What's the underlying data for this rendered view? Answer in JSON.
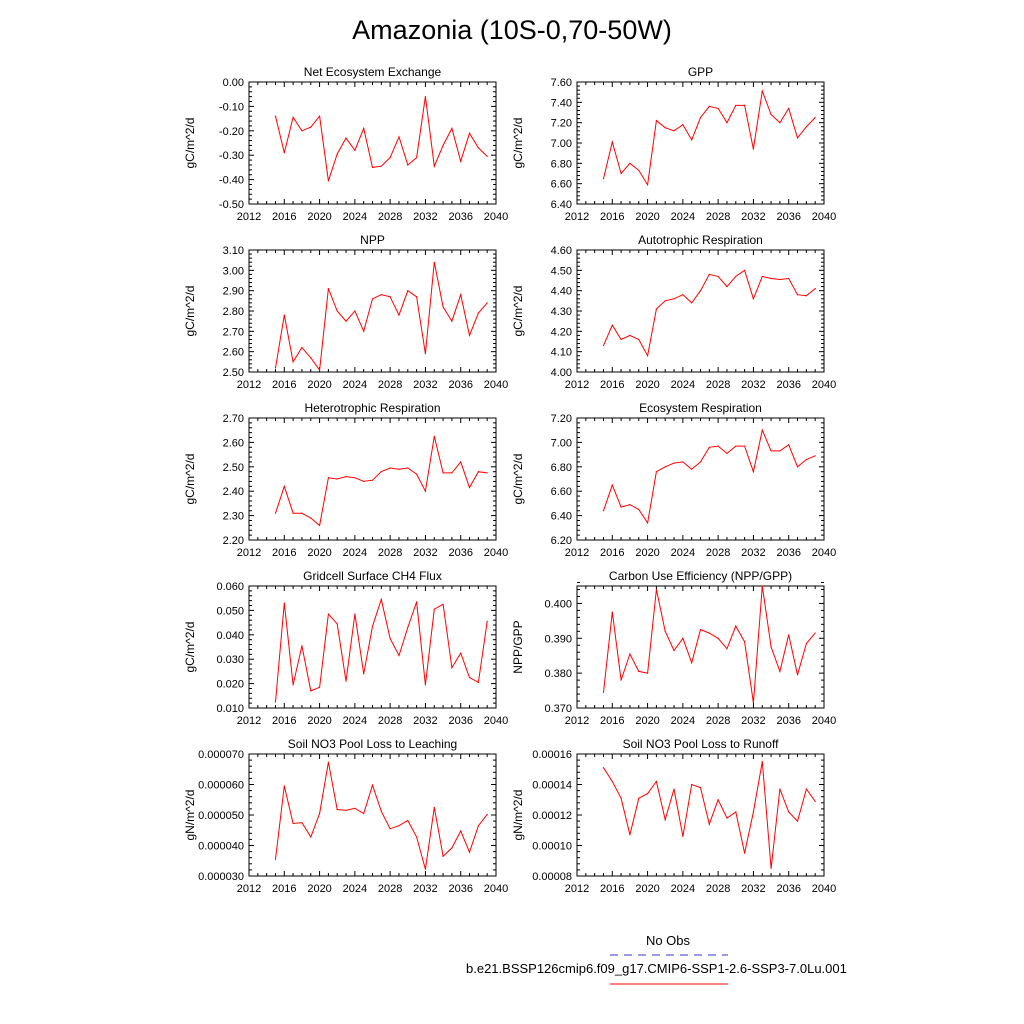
{
  "page": {
    "title": "Amazonia (10S-0,70-50W)"
  },
  "legend": {
    "obs_label": "No Obs",
    "obs_color": "#3333cc",
    "model_label": "b.e21.BSSP126cmip6.f09_g17.CMIP6-SSP1-2.6-SSP3-7.0Lu.001",
    "model_color": "#ff0000"
  },
  "chart_data": [
    {
      "type": "line",
      "title": "Net Ecosystem Exchange",
      "ylabel": "gC/m^2/d",
      "xlim": [
        2012,
        2040
      ],
      "xticks": [
        2012,
        2016,
        2020,
        2024,
        2028,
        2032,
        2036,
        2040
      ],
      "ylim": [
        -0.5,
        0.0
      ],
      "yticks": [
        -0.5,
        -0.4,
        -0.3,
        -0.2,
        -0.1,
        0.0
      ],
      "ydecimals": 2,
      "series": [
        {
          "color": "#ff0000",
          "x": [
            2015,
            2016,
            2017,
            2018,
            2019,
            2020,
            2021,
            2022,
            2023,
            2024,
            2025,
            2026,
            2027,
            2028,
            2029,
            2030,
            2031,
            2032,
            2033,
            2034,
            2035,
            2036,
            2037,
            2038,
            2039
          ],
          "y": [
            -0.14,
            -0.29,
            -0.145,
            -0.2,
            -0.185,
            -0.14,
            -0.405,
            -0.295,
            -0.23,
            -0.28,
            -0.19,
            -0.35,
            -0.345,
            -0.31,
            -0.225,
            -0.34,
            -0.31,
            -0.06,
            -0.345,
            -0.26,
            -0.19,
            -0.325,
            -0.21,
            -0.27,
            -0.305
          ]
        }
      ]
    },
    {
      "type": "line",
      "title": "GPP",
      "ylabel": "gC/m^2/d",
      "xlim": [
        2012,
        2040
      ],
      "xticks": [
        2012,
        2016,
        2020,
        2024,
        2028,
        2032,
        2036,
        2040
      ],
      "ylim": [
        6.4,
        7.6
      ],
      "yticks": [
        6.4,
        6.6,
        6.8,
        7.0,
        7.2,
        7.4,
        7.6
      ],
      "ydecimals": 2,
      "series": [
        {
          "color": "#ff0000",
          "x": [
            2015,
            2016,
            2017,
            2018,
            2019,
            2020,
            2021,
            2022,
            2023,
            2024,
            2025,
            2026,
            2027,
            2028,
            2029,
            2030,
            2031,
            2032,
            2033,
            2034,
            2035,
            2036,
            2037,
            2038,
            2039
          ],
          "y": [
            6.65,
            7.01,
            6.7,
            6.8,
            6.73,
            6.59,
            7.22,
            7.15,
            7.12,
            7.18,
            7.03,
            7.25,
            7.36,
            7.34,
            7.2,
            7.37,
            7.37,
            6.94,
            7.51,
            7.28,
            7.2,
            7.34,
            7.05,
            7.16,
            7.25
          ]
        }
      ]
    },
    {
      "type": "line",
      "title": "NPP",
      "ylabel": "gC/m^2/d",
      "xlim": [
        2012,
        2040
      ],
      "xticks": [
        2012,
        2016,
        2020,
        2024,
        2028,
        2032,
        2036,
        2040
      ],
      "ylim": [
        2.5,
        3.1
      ],
      "yticks": [
        2.5,
        2.6,
        2.7,
        2.8,
        2.9,
        3.0,
        3.1
      ],
      "ydecimals": 2,
      "series": [
        {
          "color": "#ff0000",
          "x": [
            2015,
            2016,
            2017,
            2018,
            2019,
            2020,
            2021,
            2022,
            2023,
            2024,
            2025,
            2026,
            2027,
            2028,
            2029,
            2030,
            2031,
            2032,
            2033,
            2034,
            2035,
            2036,
            2037,
            2038,
            2039
          ],
          "y": [
            2.52,
            2.78,
            2.55,
            2.62,
            2.57,
            2.51,
            2.91,
            2.8,
            2.75,
            2.8,
            2.7,
            2.86,
            2.88,
            2.87,
            2.78,
            2.9,
            2.87,
            2.59,
            3.04,
            2.82,
            2.75,
            2.88,
            2.68,
            2.79,
            2.84
          ]
        }
      ]
    },
    {
      "type": "line",
      "title": "Autotrophic Respiration",
      "ylabel": "gC/m^2/d",
      "xlim": [
        2012,
        2040
      ],
      "xticks": [
        2012,
        2016,
        2020,
        2024,
        2028,
        2032,
        2036,
        2040
      ],
      "ylim": [
        4.0,
        4.6
      ],
      "yticks": [
        4.0,
        4.1,
        4.2,
        4.3,
        4.4,
        4.5,
        4.6
      ],
      "ydecimals": 2,
      "series": [
        {
          "color": "#ff0000",
          "x": [
            2015,
            2016,
            2017,
            2018,
            2019,
            2020,
            2021,
            2022,
            2023,
            2024,
            2025,
            2026,
            2027,
            2028,
            2029,
            2030,
            2031,
            2032,
            2033,
            2034,
            2035,
            2036,
            2037,
            2038,
            2039
          ],
          "y": [
            4.13,
            4.23,
            4.16,
            4.18,
            4.16,
            4.08,
            4.31,
            4.35,
            4.36,
            4.38,
            4.34,
            4.4,
            4.48,
            4.47,
            4.42,
            4.47,
            4.5,
            4.36,
            4.47,
            4.46,
            4.455,
            4.46,
            4.38,
            4.375,
            4.41
          ]
        }
      ]
    },
    {
      "type": "line",
      "title": "Heterotrophic Respiration",
      "ylabel": "gC/m^2/d",
      "xlim": [
        2012,
        2040
      ],
      "xticks": [
        2012,
        2016,
        2020,
        2024,
        2028,
        2032,
        2036,
        2040
      ],
      "ylim": [
        2.2,
        2.7
      ],
      "yticks": [
        2.2,
        2.3,
        2.4,
        2.5,
        2.6,
        2.7
      ],
      "ydecimals": 2,
      "series": [
        {
          "color": "#ff0000",
          "x": [
            2015,
            2016,
            2017,
            2018,
            2019,
            2020,
            2021,
            2022,
            2023,
            2024,
            2025,
            2026,
            2027,
            2028,
            2029,
            2030,
            2031,
            2032,
            2033,
            2034,
            2035,
            2036,
            2037,
            2038,
            2039
          ],
          "y": [
            2.31,
            2.42,
            2.31,
            2.31,
            2.29,
            2.26,
            2.455,
            2.45,
            2.46,
            2.455,
            2.44,
            2.445,
            2.48,
            2.495,
            2.49,
            2.495,
            2.47,
            2.4,
            2.625,
            2.475,
            2.475,
            2.52,
            2.415,
            2.48,
            2.475
          ]
        }
      ]
    },
    {
      "type": "line",
      "title": "Ecosystem Respiration",
      "ylabel": "gC/m^2/d",
      "xlim": [
        2012,
        2040
      ],
      "xticks": [
        2012,
        2016,
        2020,
        2024,
        2028,
        2032,
        2036,
        2040
      ],
      "ylim": [
        6.2,
        7.2
      ],
      "yticks": [
        6.2,
        6.4,
        6.6,
        6.8,
        7.0,
        7.2
      ],
      "ydecimals": 2,
      "series": [
        {
          "color": "#ff0000",
          "x": [
            2015,
            2016,
            2017,
            2018,
            2019,
            2020,
            2021,
            2022,
            2023,
            2024,
            2025,
            2026,
            2027,
            2028,
            2029,
            2030,
            2031,
            2032,
            2033,
            2034,
            2035,
            2036,
            2037,
            2038,
            2039
          ],
          "y": [
            6.44,
            6.65,
            6.47,
            6.49,
            6.45,
            6.34,
            6.76,
            6.8,
            6.83,
            6.84,
            6.78,
            6.84,
            6.96,
            6.97,
            6.91,
            6.97,
            6.97,
            6.76,
            7.1,
            6.93,
            6.93,
            6.98,
            6.8,
            6.86,
            6.89
          ]
        }
      ]
    },
    {
      "type": "line",
      "title": "Gridcell Surface CH4 Flux",
      "ylabel": "gC/m^2/d",
      "xlim": [
        2012,
        2040
      ],
      "xticks": [
        2012,
        2016,
        2020,
        2024,
        2028,
        2032,
        2036,
        2040
      ],
      "ylim": [
        0.01,
        0.06
      ],
      "yticks": [
        0.01,
        0.02,
        0.03,
        0.04,
        0.05,
        0.06
      ],
      "ydecimals": 3,
      "series": [
        {
          "color": "#ff0000",
          "x": [
            2015,
            2016,
            2017,
            2018,
            2019,
            2020,
            2021,
            2022,
            2023,
            2024,
            2025,
            2026,
            2027,
            2028,
            2029,
            2030,
            2031,
            2032,
            2033,
            2034,
            2035,
            2036,
            2037,
            2038,
            2039
          ],
          "y": [
            0.0125,
            0.053,
            0.0195,
            0.0355,
            0.017,
            0.0185,
            0.0485,
            0.0445,
            0.021,
            0.0485,
            0.024,
            0.0435,
            0.0545,
            0.0385,
            0.0315,
            0.043,
            0.0535,
            0.0195,
            0.0505,
            0.0525,
            0.0265,
            0.0325,
            0.0225,
            0.0205,
            0.0455
          ]
        }
      ]
    },
    {
      "type": "line",
      "title": "Carbon Use Efficiency (NPP/GPP)",
      "ylabel": "NPP/GPP",
      "xlim": [
        2012,
        2040
      ],
      "xticks": [
        2012,
        2016,
        2020,
        2024,
        2028,
        2032,
        2036,
        2040
      ],
      "ylim": [
        0.37,
        0.405
      ],
      "yticks": [
        0.37,
        0.38,
        0.39,
        0.4
      ],
      "ydecimals": 3,
      "series": [
        {
          "color": "#ff0000",
          "x": [
            2015,
            2016,
            2017,
            2018,
            2019,
            2020,
            2021,
            2022,
            2023,
            2024,
            2025,
            2026,
            2027,
            2028,
            2029,
            2030,
            2031,
            2032,
            2033,
            2034,
            2035,
            2036,
            2037,
            2038,
            2039
          ],
          "y": [
            0.3745,
            0.3975,
            0.378,
            0.3855,
            0.3805,
            0.38,
            0.404,
            0.392,
            0.3865,
            0.39,
            0.383,
            0.3925,
            0.3915,
            0.39,
            0.387,
            0.3935,
            0.389,
            0.3715,
            0.405,
            0.3875,
            0.3805,
            0.391,
            0.3795,
            0.3885,
            0.3915
          ]
        }
      ]
    },
    {
      "type": "line",
      "title": "Soil NO3 Pool Loss to Leaching",
      "ylabel": "gN/m^2/d",
      "xlim": [
        2012,
        2040
      ],
      "xticks": [
        2012,
        2016,
        2020,
        2024,
        2028,
        2032,
        2036,
        2040
      ],
      "ylim": [
        3e-05,
        7e-05
      ],
      "yticks": [
        3e-05,
        4e-05,
        5e-05,
        6e-05,
        7e-05
      ],
      "ydecimals": 6,
      "series": [
        {
          "color": "#ff0000",
          "x": [
            2015,
            2016,
            2017,
            2018,
            2019,
            2020,
            2021,
            2022,
            2023,
            2024,
            2025,
            2026,
            2027,
            2028,
            2029,
            2030,
            2031,
            2032,
            2033,
            2034,
            2035,
            2036,
            2037,
            2038,
            2039
          ],
          "y": [
            3.55e-05,
            5.95e-05,
            4.72e-05,
            4.75e-05,
            4.28e-05,
            5.05e-05,
            6.73e-05,
            5.18e-05,
            5.15e-05,
            5.22e-05,
            5.05e-05,
            5.98e-05,
            5.12e-05,
            4.55e-05,
            4.65e-05,
            4.82e-05,
            4.28e-05,
            3.22e-05,
            5.25e-05,
            3.65e-05,
            3.92e-05,
            4.48e-05,
            3.78e-05,
            4.65e-05,
            5.02e-05
          ]
        }
      ]
    },
    {
      "type": "line",
      "title": "Soil NO3 Pool Loss to Runoff",
      "ylabel": "gN/m^2/d",
      "xlim": [
        2012,
        2040
      ],
      "xticks": [
        2012,
        2016,
        2020,
        2024,
        2028,
        2032,
        2036,
        2040
      ],
      "ylim": [
        8e-05,
        0.00016
      ],
      "yticks": [
        8e-05,
        0.0001,
        0.00012,
        0.00014,
        0.00016
      ],
      "ydecimals": 5,
      "series": [
        {
          "color": "#ff0000",
          "x": [
            2015,
            2016,
            2017,
            2018,
            2019,
            2020,
            2021,
            2022,
            2023,
            2024,
            2025,
            2026,
            2027,
            2028,
            2029,
            2030,
            2031,
            2032,
            2033,
            2034,
            2035,
            2036,
            2037,
            2038,
            2039
          ],
          "y": [
            0.000151,
            0.000142,
            0.000131,
            0.000107,
            0.000131,
            0.000134,
            0.000142,
            0.000117,
            0.000137,
            0.000106,
            0.00014,
            0.000138,
            0.000114,
            0.00013,
            0.000118,
            0.000122,
            9.5e-05,
            0.000122,
            0.000155,
            8.5e-05,
            0.000137,
            0.000122,
            0.000116,
            0.000137,
            0.000129
          ]
        }
      ]
    }
  ]
}
